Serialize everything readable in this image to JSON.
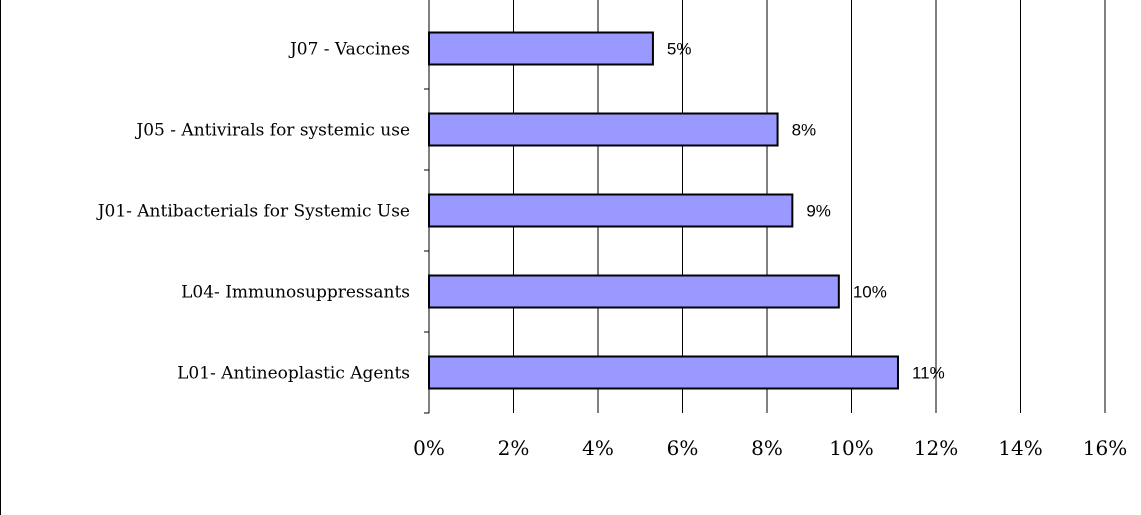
{
  "chart_data": {
    "type": "bar",
    "orientation": "horizontal",
    "categories": [
      "J07 - Vaccines",
      "J05 - Antivirals for systemic use",
      "J01- Antibacterials for Systemic Use",
      "L04- Immunosuppressants",
      "L01- Antineoplastic Agents"
    ],
    "values": [
      5.3,
      8.25,
      8.6,
      9.7,
      11.1
    ],
    "data_labels": [
      "5%",
      "8%",
      "9%",
      "10%",
      "11%"
    ],
    "xlim": [
      0,
      16
    ],
    "x_ticks": [
      0,
      2,
      4,
      6,
      8,
      10,
      12,
      14,
      16
    ],
    "x_tick_labels": [
      "0%",
      "2%",
      "4%",
      "6%",
      "8%",
      "10%",
      "12%",
      "14%",
      "16%"
    ],
    "grid": "vertical",
    "legend": "none",
    "title": "",
    "xlabel": "",
    "ylabel": "",
    "bar_color": "#9999ff",
    "bar_edge_color": "#000000"
  }
}
